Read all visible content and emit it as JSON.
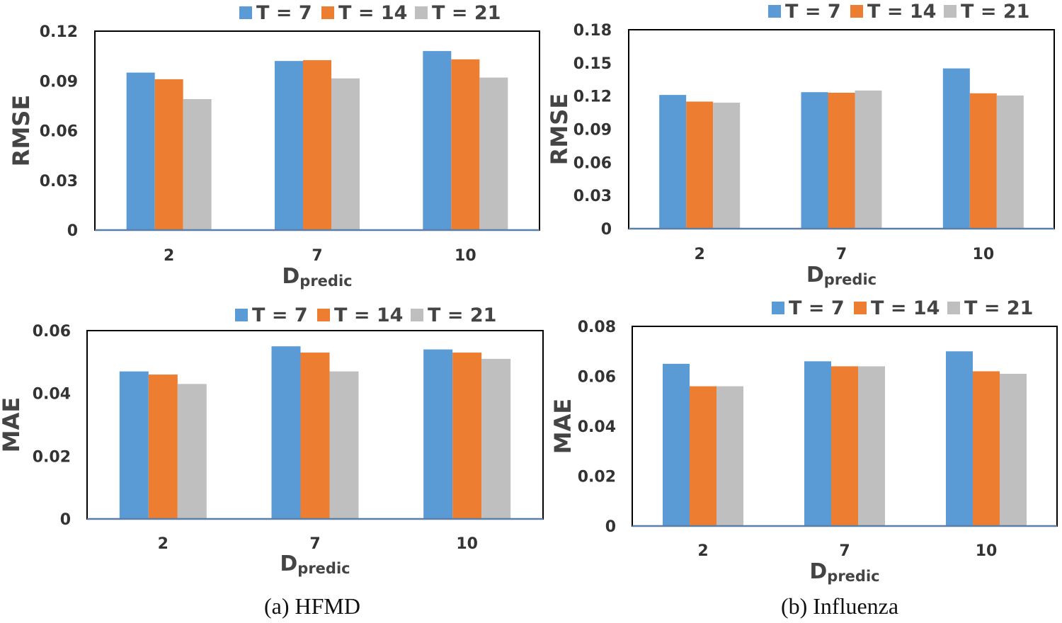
{
  "captions": {
    "hfmd": "(a) HFMD",
    "influenza": "(b) Influenza"
  },
  "colors": {
    "T7": "#5b9bd5",
    "T14": "#ed7d31",
    "T21": "#bfbfbf",
    "axis": "#5b7fa6",
    "frame": "#000000"
  },
  "chart_data": [
    {
      "type": "bar",
      "dataset": "HFMD",
      "ylabel": "RMSE",
      "xlabel": "D",
      "xlabel_sub": "predic",
      "categories": [
        "2",
        "7",
        "10"
      ],
      "ylim": [
        0,
        0.12
      ],
      "yticks": [
        "0",
        "0.03",
        "0.06",
        "0.09",
        "0.12"
      ],
      "legend_position": "top",
      "series": [
        {
          "name": "T = 7",
          "values": [
            0.095,
            0.102,
            0.108
          ]
        },
        {
          "name": "T = 14",
          "values": [
            0.091,
            0.1025,
            0.103
          ]
        },
        {
          "name": "T = 21",
          "values": [
            0.079,
            0.0915,
            0.092
          ]
        }
      ]
    },
    {
      "type": "bar",
      "dataset": "Influenza",
      "ylabel": "RMSE",
      "xlabel": "D",
      "xlabel_sub": "predic",
      "categories": [
        "2",
        "7",
        "10"
      ],
      "ylim": [
        0,
        0.18
      ],
      "yticks": [
        "0",
        "0.03",
        "0.06",
        "0.09",
        "0.12",
        "0.15",
        "0.18"
      ],
      "legend_position": "top",
      "series": [
        {
          "name": "T = 7",
          "values": [
            0.121,
            0.1235,
            0.145
          ]
        },
        {
          "name": "T = 14",
          "values": [
            0.115,
            0.123,
            0.1225
          ]
        },
        {
          "name": "T = 21",
          "values": [
            0.114,
            0.125,
            0.1205
          ]
        }
      ]
    },
    {
      "type": "bar",
      "dataset": "HFMD",
      "ylabel": "MAE",
      "xlabel": "D",
      "xlabel_sub": "predic",
      "categories": [
        "2",
        "7",
        "10"
      ],
      "ylim": [
        0,
        0.06
      ],
      "yticks": [
        "0",
        "0.02",
        "0.04",
        "0.06"
      ],
      "legend_position": "top",
      "series": [
        {
          "name": "T = 7",
          "values": [
            0.047,
            0.055,
            0.054
          ]
        },
        {
          "name": "T = 14",
          "values": [
            0.046,
            0.053,
            0.053
          ]
        },
        {
          "name": "T = 21",
          "values": [
            0.043,
            0.047,
            0.051
          ]
        }
      ]
    },
    {
      "type": "bar",
      "dataset": "Influenza",
      "ylabel": "MAE",
      "xlabel": "D",
      "xlabel_sub": "predic",
      "categories": [
        "2",
        "7",
        "10"
      ],
      "ylim": [
        0,
        0.08
      ],
      "yticks": [
        "0",
        "0.02",
        "0.04",
        "0.06",
        "0.08"
      ],
      "legend_position": "top",
      "series": [
        {
          "name": "T = 7",
          "values": [
            0.065,
            0.066,
            0.07
          ]
        },
        {
          "name": "T = 14",
          "values": [
            0.056,
            0.064,
            0.062
          ]
        },
        {
          "name": "T = 21",
          "values": [
            0.056,
            0.064,
            0.061
          ]
        }
      ]
    }
  ]
}
